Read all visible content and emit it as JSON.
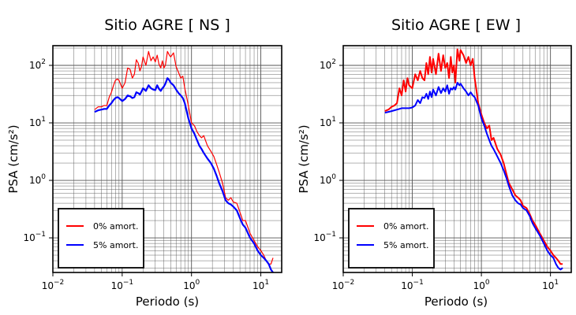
{
  "figure": {
    "colors": {
      "undamped": "#ff0000",
      "damped": "#0000ff",
      "grid": "#555555"
    }
  },
  "chart_data": [
    {
      "type": "line",
      "title": "Sitio AGRE [ NS ]",
      "xlabel": "Periodo (s)",
      "ylabel": "PSA (cm/s²)",
      "xscale": "log",
      "yscale": "log",
      "xlim": [
        0.01,
        20
      ],
      "ylim": [
        0.025,
        220
      ],
      "grid": true,
      "legend_position": "bottom-left",
      "x_tick_labels": [
        {
          "value": 0.01,
          "base": "10",
          "exp": "−2"
        },
        {
          "value": 0.1,
          "base": "10",
          "exp": "−1"
        },
        {
          "value": 1,
          "base": "10",
          "exp": "0"
        },
        {
          "value": 10,
          "base": "10",
          "exp": "1"
        }
      ],
      "y_tick_labels": [
        {
          "value": 0.1,
          "base": "10",
          "exp": "−1"
        },
        {
          "value": 1,
          "base": "10",
          "exp": "0"
        },
        {
          "value": 10,
          "base": "10",
          "exp": "1"
        },
        {
          "value": 100,
          "base": "10",
          "exp": "2"
        }
      ],
      "series": [
        {
          "name": "0% amort.",
          "color": "#ff0000",
          "width": 1.2,
          "x": [
            0.04,
            0.045,
            0.05,
            0.055,
            0.06,
            0.065,
            0.07,
            0.075,
            0.08,
            0.085,
            0.09,
            0.1,
            0.11,
            0.12,
            0.13,
            0.14,
            0.15,
            0.16,
            0.17,
            0.18,
            0.19,
            0.2,
            0.22,
            0.24,
            0.26,
            0.28,
            0.3,
            0.32,
            0.34,
            0.36,
            0.38,
            0.4,
            0.42,
            0.45,
            0.48,
            0.5,
            0.55,
            0.6,
            0.65,
            0.7,
            0.75,
            0.8,
            0.9,
            1.0,
            1.1,
            1.2,
            1.3,
            1.4,
            1.5,
            1.7,
            1.9,
            2.1,
            2.3,
            2.5,
            2.8,
            3.1,
            3.4,
            3.7,
            4.0,
            4.5,
            5.0,
            5.5,
            6,
            7,
            8,
            9,
            10,
            11,
            12,
            13,
            14,
            15
          ],
          "y": [
            17,
            19,
            19,
            20,
            20,
            28,
            34,
            45,
            55,
            58,
            55,
            40,
            50,
            90,
            85,
            60,
            70,
            125,
            110,
            80,
            95,
            140,
            100,
            175,
            120,
            140,
            115,
            150,
            105,
            90,
            120,
            90,
            100,
            175,
            150,
            140,
            165,
            95,
            75,
            60,
            65,
            40,
            20,
            10,
            9,
            7,
            6,
            5.5,
            6,
            4,
            3.2,
            2.6,
            1.9,
            1.4,
            0.9,
            0.5,
            0.45,
            0.5,
            0.42,
            0.4,
            0.28,
            0.2,
            0.2,
            0.12,
            0.09,
            0.07,
            0.06,
            0.05,
            0.04,
            0.035,
            0.035,
            0.045
          ]
        },
        {
          "name": "5% amort.",
          "color": "#0000ff",
          "width": 2.2,
          "x": [
            0.04,
            0.045,
            0.05,
            0.055,
            0.06,
            0.065,
            0.07,
            0.075,
            0.08,
            0.085,
            0.09,
            0.1,
            0.11,
            0.12,
            0.13,
            0.14,
            0.15,
            0.16,
            0.17,
            0.18,
            0.19,
            0.2,
            0.22,
            0.24,
            0.26,
            0.28,
            0.3,
            0.32,
            0.34,
            0.36,
            0.38,
            0.4,
            0.42,
            0.45,
            0.48,
            0.5,
            0.55,
            0.6,
            0.65,
            0.7,
            0.75,
            0.8,
            0.9,
            1.0,
            1.1,
            1.2,
            1.3,
            1.4,
            1.5,
            1.7,
            1.9,
            2.1,
            2.3,
            2.5,
            2.8,
            3.1,
            3.4,
            3.7,
            4.0,
            4.5,
            5.0,
            5.5,
            6,
            7,
            8,
            9,
            10,
            11,
            12,
            13,
            14,
            15
          ],
          "y": [
            15.5,
            16.5,
            17,
            17.5,
            17.5,
            20,
            22,
            25,
            27,
            28,
            27,
            24,
            26,
            30,
            29,
            27,
            28,
            34,
            33,
            31,
            35,
            40,
            36,
            45,
            40,
            38,
            37,
            45,
            39,
            36,
            40,
            43,
            48,
            60,
            55,
            50,
            45,
            38,
            33,
            30,
            27,
            22,
            12,
            8,
            6.5,
            5,
            4,
            3.5,
            3,
            2.4,
            2.0,
            1.6,
            1.2,
            0.9,
            0.65,
            0.45,
            0.4,
            0.38,
            0.35,
            0.3,
            0.22,
            0.17,
            0.15,
            0.1,
            0.08,
            0.06,
            0.05,
            0.045,
            0.04,
            0.035,
            0.028,
            0.025
          ]
        }
      ]
    },
    {
      "type": "line",
      "title": "Sitio AGRE [ EW ]",
      "xlabel": "Periodo (s)",
      "ylabel": "PSA (cm/s²)",
      "xscale": "log",
      "yscale": "log",
      "xlim": [
        0.01,
        20
      ],
      "ylim": [
        0.025,
        220
      ],
      "grid": true,
      "legend_position": "bottom-left",
      "x_tick_labels": [
        {
          "value": 0.01,
          "base": "10",
          "exp": "−2"
        },
        {
          "value": 0.1,
          "base": "10",
          "exp": "−1"
        },
        {
          "value": 1,
          "base": "10",
          "exp": "0"
        },
        {
          "value": 10,
          "base": "10",
          "exp": "1"
        }
      ],
      "y_tick_labels": [
        {
          "value": 0.1,
          "base": "10",
          "exp": "−1"
        },
        {
          "value": 1,
          "base": "10",
          "exp": "0"
        },
        {
          "value": 10,
          "base": "10",
          "exp": "1"
        },
        {
          "value": 100,
          "base": "10",
          "exp": "2"
        }
      ],
      "series": [
        {
          "name": "0% amort.",
          "color": "#ff0000",
          "width": 2.0,
          "x": [
            0.04,
            0.045,
            0.05,
            0.055,
            0.06,
            0.065,
            0.07,
            0.075,
            0.08,
            0.085,
            0.09,
            0.1,
            0.11,
            0.12,
            0.13,
            0.14,
            0.15,
            0.16,
            0.17,
            0.18,
            0.19,
            0.2,
            0.22,
            0.24,
            0.26,
            0.28,
            0.3,
            0.32,
            0.34,
            0.36,
            0.38,
            0.4,
            0.42,
            0.45,
            0.48,
            0.5,
            0.55,
            0.6,
            0.65,
            0.7,
            0.75,
            0.8,
            0.9,
            1.0,
            1.1,
            1.2,
            1.3,
            1.4,
            1.5,
            1.7,
            1.9,
            2.1,
            2.3,
            2.5,
            2.8,
            3.1,
            3.4,
            3.7,
            4.0,
            4.5,
            5.0,
            5.5,
            6,
            7,
            8,
            9,
            10,
            11,
            12,
            13,
            14,
            15
          ],
          "y": [
            16,
            17,
            19,
            20,
            22,
            40,
            30,
            55,
            35,
            60,
            45,
            40,
            70,
            55,
            80,
            60,
            55,
            110,
            70,
            140,
            75,
            130,
            70,
            160,
            80,
            150,
            90,
            110,
            60,
            140,
            75,
            100,
            50,
            190,
            120,
            185,
            150,
            110,
            140,
            100,
            130,
            60,
            22,
            14,
            10,
            8,
            9,
            5,
            5.5,
            3.5,
            2.8,
            2.0,
            1.3,
            0.9,
            0.7,
            0.55,
            0.5,
            0.45,
            0.36,
            0.33,
            0.26,
            0.2,
            0.17,
            0.12,
            0.09,
            0.07,
            0.06,
            0.05,
            0.045,
            0.04,
            0.035,
            0.035
          ]
        },
        {
          "name": "5% amort.",
          "color": "#0000ff",
          "width": 2.0,
          "x": [
            0.04,
            0.045,
            0.05,
            0.055,
            0.06,
            0.065,
            0.07,
            0.075,
            0.08,
            0.085,
            0.09,
            0.1,
            0.11,
            0.12,
            0.13,
            0.14,
            0.15,
            0.16,
            0.17,
            0.18,
            0.19,
            0.2,
            0.22,
            0.24,
            0.26,
            0.28,
            0.3,
            0.32,
            0.34,
            0.36,
            0.38,
            0.4,
            0.42,
            0.45,
            0.48,
            0.5,
            0.55,
            0.6,
            0.65,
            0.7,
            0.75,
            0.8,
            0.9,
            1.0,
            1.1,
            1.2,
            1.3,
            1.4,
            1.5,
            1.7,
            1.9,
            2.1,
            2.3,
            2.5,
            2.8,
            3.1,
            3.4,
            3.7,
            4.0,
            4.5,
            5.0,
            5.5,
            6,
            7,
            8,
            9,
            10,
            11,
            12,
            13,
            14,
            15
          ],
          "y": [
            15,
            15.5,
            16,
            16.5,
            17,
            17.5,
            18,
            18,
            18,
            18,
            18,
            18.5,
            20,
            25,
            22,
            28,
            27,
            32,
            26,
            35,
            28,
            38,
            30,
            42,
            33,
            40,
            35,
            45,
            32,
            40,
            38,
            42,
            38,
            50,
            45,
            48,
            40,
            35,
            30,
            34,
            30,
            28,
            20,
            12,
            9,
            6.5,
            5,
            4,
            3.5,
            2.6,
            2.0,
            1.5,
            1.1,
            0.8,
            0.55,
            0.45,
            0.4,
            0.38,
            0.33,
            0.3,
            0.24,
            0.18,
            0.15,
            0.11,
            0.08,
            0.06,
            0.05,
            0.045,
            0.035,
            0.03,
            0.028,
            0.03
          ]
        }
      ]
    }
  ]
}
